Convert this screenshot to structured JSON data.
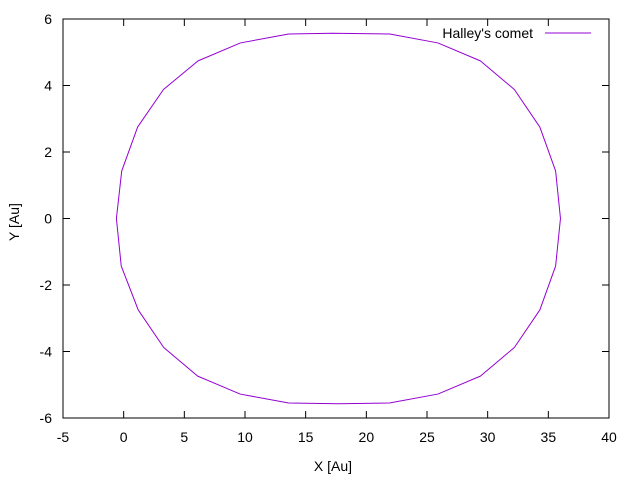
{
  "chart_data": {
    "type": "line",
    "title": "",
    "xlabel": "X [Au]",
    "ylabel": "Y [Au]",
    "xlim": [
      -5,
      40
    ],
    "ylim": [
      -6,
      6
    ],
    "x_ticks": [
      -5,
      0,
      5,
      10,
      15,
      20,
      25,
      30,
      35,
      40
    ],
    "y_ticks": [
      -6,
      -4,
      -2,
      0,
      2,
      4,
      6
    ],
    "grid": false,
    "legend_position": "top-right",
    "series": [
      {
        "name": "Halley's comet",
        "color": "#9400d3",
        "x": [
          -0.6,
          -0.16,
          1.15,
          3.28,
          6.13,
          9.62,
          13.6,
          17.2,
          21.94,
          25.9,
          29.4,
          32.2,
          34.3,
          35.6,
          36.0,
          35.6,
          34.3,
          32.2,
          29.4,
          25.9,
          21.9,
          17.7,
          13.6,
          9.6,
          6.1,
          3.3,
          1.2,
          -0.2,
          -0.6
        ],
        "y": [
          0,
          1.43,
          2.75,
          3.88,
          4.74,
          5.28,
          5.55,
          5.57,
          5.55,
          5.28,
          4.74,
          3.88,
          2.75,
          1.43,
          0,
          -1.43,
          -2.75,
          -3.88,
          -4.74,
          -5.28,
          -5.55,
          -5.57,
          -5.55,
          -5.28,
          -4.74,
          -3.88,
          -2.75,
          -1.43,
          0
        ]
      }
    ]
  }
}
